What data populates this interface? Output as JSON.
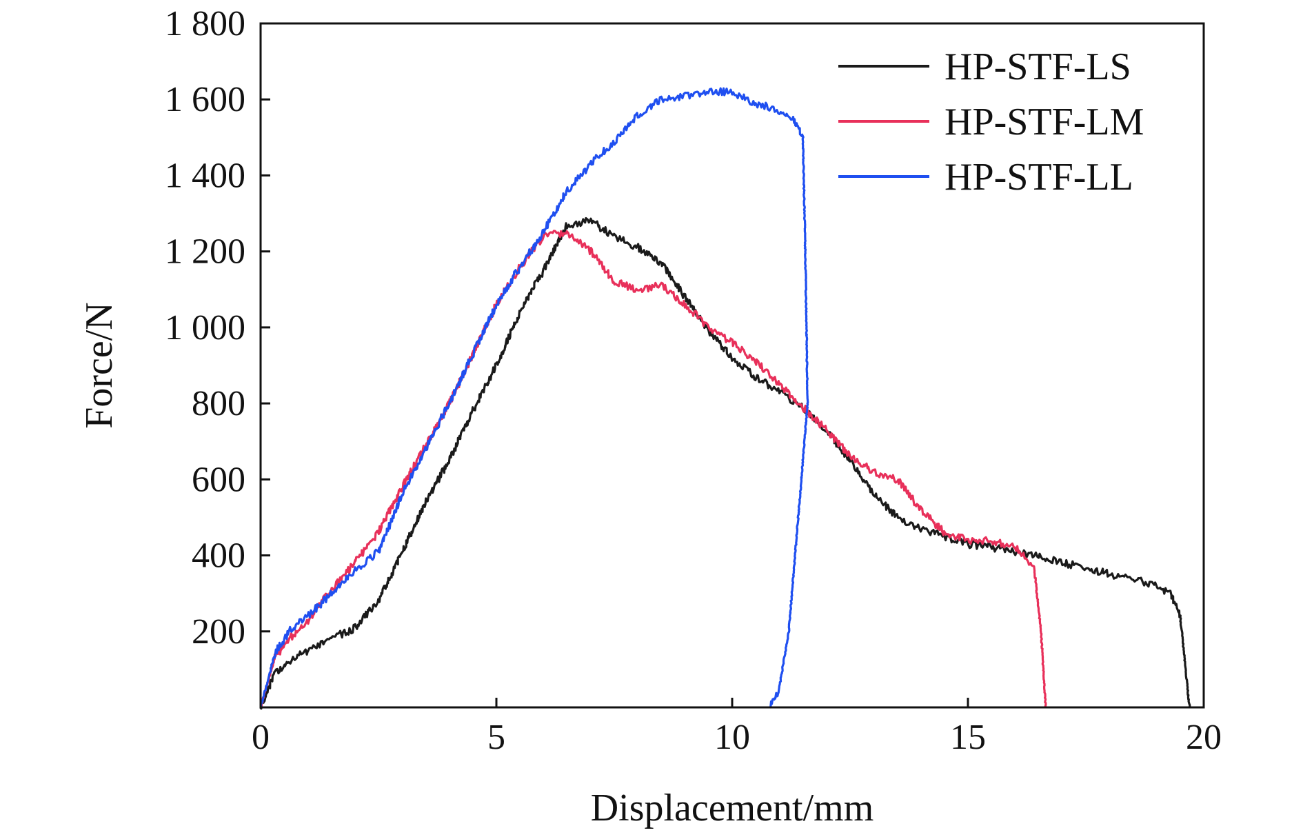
{
  "chart_data": {
    "type": "line",
    "title": "",
    "xlabel": "Displacement/mm",
    "ylabel": "Force/N",
    "xlim": [
      0,
      20
    ],
    "ylim": [
      0,
      1800
    ],
    "x_ticks": [
      0,
      5,
      10,
      15,
      20
    ],
    "x_tick_labels": [
      "0",
      "5",
      "10",
      "15",
      "20"
    ],
    "y_ticks": [
      200,
      400,
      600,
      800,
      1000,
      1200,
      1400,
      1600,
      1800
    ],
    "y_tick_labels": [
      "200",
      "400",
      "600",
      "800",
      "1 000",
      "1 200",
      "1 400",
      "1 600",
      "1 800"
    ],
    "grid": false,
    "legend_position": "top-right",
    "series": [
      {
        "name": "HP-STF-LS",
        "color": "#1a1a1a",
        "x": [
          0,
          0.3,
          0.6,
          1.0,
          1.5,
          2.0,
          2.5,
          3.0,
          3.5,
          4.0,
          4.5,
          5.0,
          5.5,
          6.0,
          6.5,
          7.0,
          7.5,
          8.0,
          8.5,
          9.0,
          9.5,
          10.0,
          10.5,
          11.0,
          11.5,
          12.0,
          12.5,
          13.0,
          13.5,
          14.0,
          14.5,
          15.0,
          15.5,
          16.0,
          16.5,
          17.0,
          17.5,
          18.0,
          18.5,
          19.0,
          19.3,
          19.5,
          19.6,
          19.7
        ],
        "y": [
          0,
          90,
          120,
          150,
          180,
          210,
          280,
          410,
          540,
          650,
          780,
          900,
          1040,
          1150,
          1270,
          1280,
          1240,
          1210,
          1170,
          1080,
          990,
          920,
          870,
          830,
          790,
          730,
          650,
          560,
          500,
          470,
          450,
          430,
          420,
          410,
          400,
          380,
          370,
          350,
          340,
          320,
          300,
          240,
          120,
          0
        ]
      },
      {
        "name": "HP-STF-LM",
        "color": "#e8305a",
        "x": [
          0,
          0.3,
          0.6,
          1.0,
          1.5,
          2.0,
          2.5,
          3.0,
          3.5,
          4.0,
          4.5,
          5.0,
          5.5,
          6.0,
          6.5,
          7.0,
          7.5,
          8.0,
          8.5,
          9.0,
          9.5,
          10.0,
          10.5,
          11.0,
          11.5,
          12.0,
          12.5,
          13.0,
          13.5,
          14.0,
          14.5,
          15.0,
          15.5,
          16.0,
          16.4,
          16.55,
          16.65
        ],
        "y": [
          0,
          130,
          180,
          230,
          310,
          380,
          460,
          580,
          690,
          800,
          930,
          1060,
          1160,
          1240,
          1250,
          1200,
          1120,
          1100,
          1110,
          1060,
          1000,
          960,
          910,
          850,
          790,
          730,
          660,
          620,
          600,
          520,
          460,
          440,
          440,
          420,
          370,
          200,
          0
        ]
      },
      {
        "name": "HP-STF-LL",
        "color": "#1f4ff0",
        "x": [
          0,
          0.3,
          0.6,
          1.0,
          1.5,
          2.0,
          2.5,
          3.0,
          3.5,
          4.0,
          4.5,
          5.0,
          5.5,
          6.0,
          6.5,
          7.0,
          7.5,
          8.0,
          8.5,
          9.0,
          9.5,
          10.0,
          10.5,
          11.0,
          11.3,
          11.5,
          11.55,
          11.6,
          11.4,
          11.2,
          11.0,
          10.8
        ],
        "y": [
          0,
          140,
          200,
          240,
          300,
          360,
          410,
          560,
          680,
          800,
          930,
          1060,
          1160,
          1250,
          1360,
          1430,
          1490,
          1560,
          1600,
          1610,
          1620,
          1620,
          1590,
          1570,
          1550,
          1500,
          1200,
          800,
          500,
          200,
          50,
          0
        ]
      }
    ]
  }
}
